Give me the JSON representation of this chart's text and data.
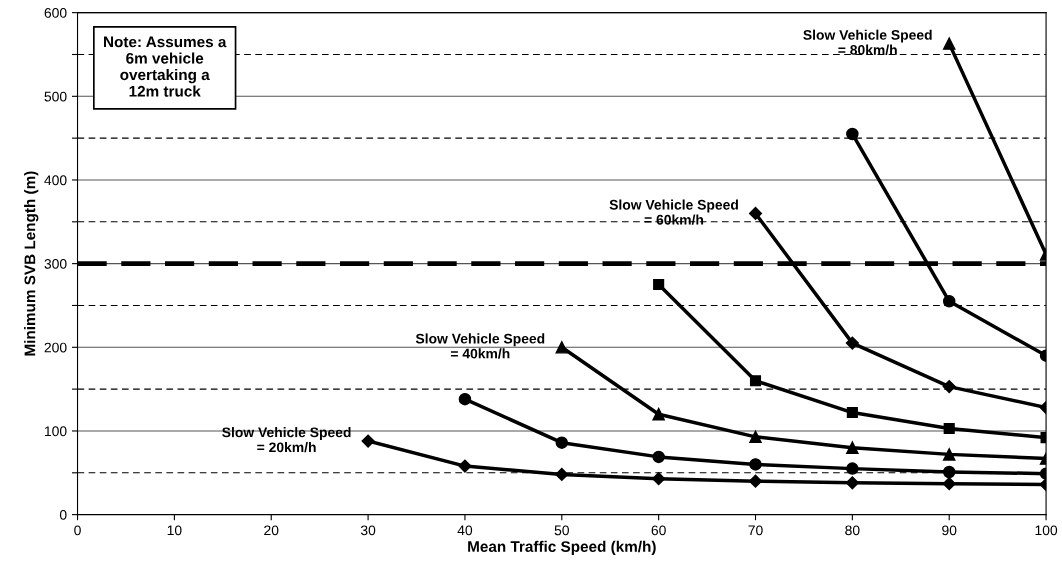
{
  "chart_data": {
    "type": "line",
    "xlabel": "Mean Traffic Speed (km/h)",
    "ylabel": "Minimum SVB Length (m)",
    "x": [
      30,
      40,
      50,
      60,
      70,
      80,
      90,
      100
    ],
    "xlim": [
      0,
      100
    ],
    "xticks": [
      0,
      10,
      20,
      30,
      40,
      50,
      60,
      70,
      80,
      90,
      100
    ],
    "ylim": [
      0,
      600
    ],
    "yticks": [
      0,
      {
        "value": 50,
        "label": null
      },
      100,
      {
        "value": 150,
        "label": null
      },
      200,
      {
        "value": 250,
        "label": null
      },
      300,
      {
        "value": 350,
        "label": null
      },
      400,
      {
        "value": 450,
        "label": null
      },
      500,
      {
        "value": 550,
        "label": null
      },
      600
    ],
    "grid": "y",
    "legend": false,
    "line_style": "solid",
    "series": [
      {
        "name": "Slow Vehicle Speed\n= 20km/h",
        "color": "#000000",
        "marker": "diamond",
        "values": [
          88,
          58,
          48,
          43,
          40,
          38,
          37,
          36
        ]
      },
      {
        "color": "#000000",
        "marker": "circle",
        "values": [
          null,
          138,
          86,
          69,
          60,
          55,
          51,
          49
        ]
      },
      {
        "name": "Slow Vehicle Speed\n= 40km/h",
        "color": "#000000",
        "marker": "triangle",
        "values": [
          null,
          null,
          200,
          120,
          93,
          80,
          72,
          67
        ]
      },
      {
        "color": "#000000",
        "marker": "square",
        "values": [
          null,
          null,
          null,
          275,
          160,
          122,
          103,
          92
        ]
      },
      {
        "name": "Slow Vehicle Speed\n= 60km/h",
        "color": "#000000",
        "marker": "diamond",
        "values": [
          null,
          null,
          null,
          null,
          360,
          205,
          153,
          128
        ]
      },
      {
        "color": "#000000",
        "marker": "circle",
        "values": [
          null,
          null,
          null,
          null,
          null,
          455,
          255,
          190
        ]
      },
      {
        "name": "Slow Vehicle Speed\n= 80km/h",
        "color": "#000000",
        "marker": "triangle",
        "values": [
          null,
          null,
          null,
          null,
          null,
          null,
          563,
          311
        ]
      }
    ],
    "ref_lines": [
      {
        "axis": "y",
        "value": 300,
        "color": "#000000",
        "line_style": "dashed"
      }
    ],
    "annotations": [
      "Note: Assumes a\n6m vehicle\novertaking a\n12m truck"
    ]
  }
}
